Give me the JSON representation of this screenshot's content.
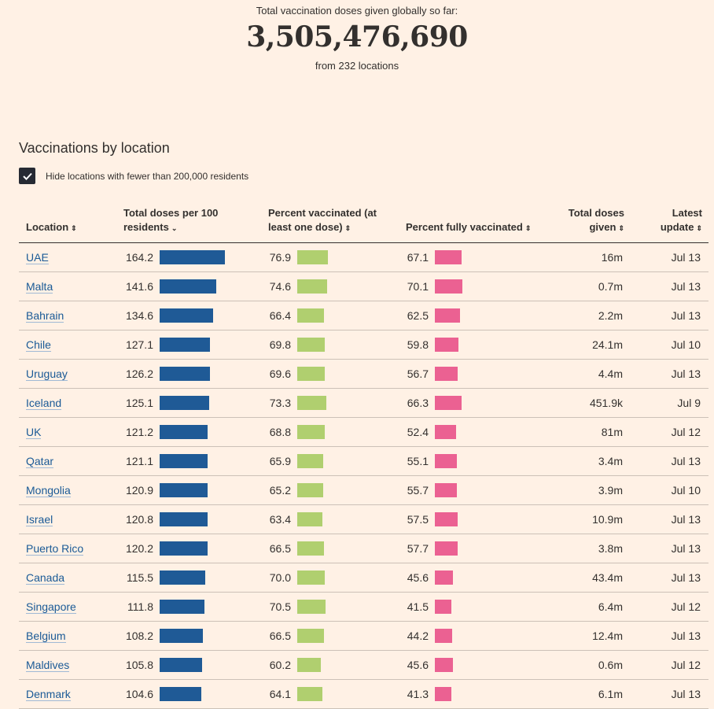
{
  "hero": {
    "label": "Total vaccination doses given globally so far:",
    "total": "3,505,476,690",
    "sub": "from 232 locations"
  },
  "section": {
    "title": "Vaccinations by location",
    "filter_label": "Hide locations with fewer than 200,000 residents",
    "filter_checked": true
  },
  "colors": {
    "doses_bar": "#1f5a96",
    "one_dose_bar": "#b0cf6f",
    "full_bar": "#eb6192"
  },
  "table": {
    "headers": {
      "location": "Location",
      "doses_per_100": "Total doses per 100 residents",
      "one_dose": "Percent vaccinated (at least one dose)",
      "fully": "Percent fully vaccinated",
      "total_doses": "Total doses given",
      "latest": "Latest update"
    },
    "sort": {
      "location": "⇕",
      "doses_per_100": "⌄",
      "one_dose": "⇕",
      "fully": "⇕",
      "total_doses": "⇕",
      "latest": "⇕"
    },
    "rows": [
      {
        "location": "UAE",
        "doses_per_100": "164.2",
        "one_dose": "76.9",
        "fully": "67.1",
        "total_doses": "16m",
        "latest": "Jul 13"
      },
      {
        "location": "Malta",
        "doses_per_100": "141.6",
        "one_dose": "74.6",
        "fully": "70.1",
        "total_doses": "0.7m",
        "latest": "Jul 13"
      },
      {
        "location": "Bahrain",
        "doses_per_100": "134.6",
        "one_dose": "66.4",
        "fully": "62.5",
        "total_doses": "2.2m",
        "latest": "Jul 13"
      },
      {
        "location": "Chile",
        "doses_per_100": "127.1",
        "one_dose": "69.8",
        "fully": "59.8",
        "total_doses": "24.1m",
        "latest": "Jul 10"
      },
      {
        "location": "Uruguay",
        "doses_per_100": "126.2",
        "one_dose": "69.6",
        "fully": "56.7",
        "total_doses": "4.4m",
        "latest": "Jul 13"
      },
      {
        "location": "Iceland",
        "doses_per_100": "125.1",
        "one_dose": "73.3",
        "fully": "66.3",
        "total_doses": "451.9k",
        "latest": "Jul 9"
      },
      {
        "location": "UK",
        "doses_per_100": "121.2",
        "one_dose": "68.8",
        "fully": "52.4",
        "total_doses": "81m",
        "latest": "Jul 12"
      },
      {
        "location": "Qatar",
        "doses_per_100": "121.1",
        "one_dose": "65.9",
        "fully": "55.1",
        "total_doses": "3.4m",
        "latest": "Jul 13"
      },
      {
        "location": "Mongolia",
        "doses_per_100": "120.9",
        "one_dose": "65.2",
        "fully": "55.7",
        "total_doses": "3.9m",
        "latest": "Jul 10"
      },
      {
        "location": "Israel",
        "doses_per_100": "120.8",
        "one_dose": "63.4",
        "fully": "57.5",
        "total_doses": "10.9m",
        "latest": "Jul 13"
      },
      {
        "location": "Puerto Rico",
        "doses_per_100": "120.2",
        "one_dose": "66.5",
        "fully": "57.7",
        "total_doses": "3.8m",
        "latest": "Jul 13"
      },
      {
        "location": "Canada",
        "doses_per_100": "115.5",
        "one_dose": "70.0",
        "fully": "45.6",
        "total_doses": "43.4m",
        "latest": "Jul 13"
      },
      {
        "location": "Singapore",
        "doses_per_100": "111.8",
        "one_dose": "70.5",
        "fully": "41.5",
        "total_doses": "6.4m",
        "latest": "Jul 12"
      },
      {
        "location": "Belgium",
        "doses_per_100": "108.2",
        "one_dose": "66.5",
        "fully": "44.2",
        "total_doses": "12.4m",
        "latest": "Jul 13"
      },
      {
        "location": "Maldives",
        "doses_per_100": "105.8",
        "one_dose": "60.2",
        "fully": "45.6",
        "total_doses": "0.6m",
        "latest": "Jul 12"
      },
      {
        "location": "Denmark",
        "doses_per_100": "104.6",
        "one_dose": "64.1",
        "fully": "41.3",
        "total_doses": "6.1m",
        "latest": "Jul 13"
      }
    ]
  }
}
